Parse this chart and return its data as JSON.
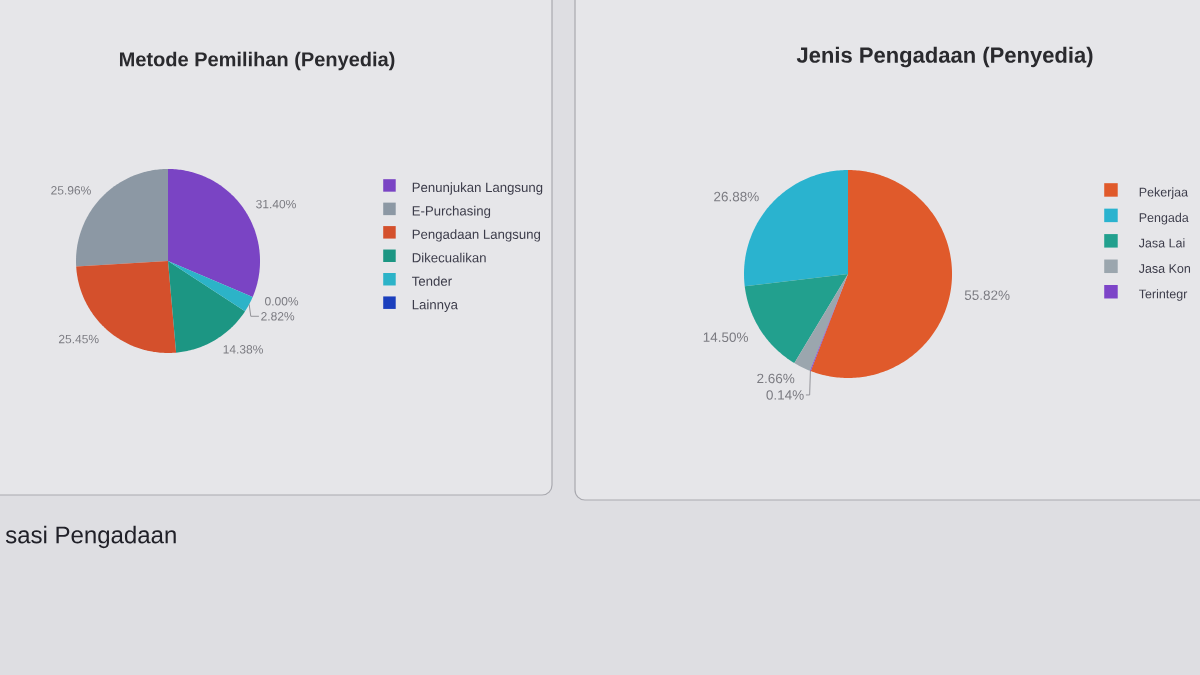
{
  "chart_data": [
    {
      "type": "pie",
      "title": "Metode Pemilihan (Penyedia)",
      "categories": [
        "Penunjukan Langsung",
        "E-Purchasing",
        "Pengadaan Langsung",
        "Dikecualikan",
        "Tender",
        "Lainnya"
      ],
      "values": [
        31.4,
        25.96,
        25.45,
        14.38,
        2.82,
        0.0
      ],
      "colors": [
        "#7a44c4",
        "#8c98a4",
        "#d4502c",
        "#1c9683",
        "#2cb3c8",
        "#1b3fbd"
      ],
      "value_labels": [
        "31.40%",
        "25.96%",
        "25.45%",
        "14.38%",
        "2.82%",
        "0.00%"
      ],
      "legend": "right",
      "annotations": [
        "sasi Pengadaan"
      ]
    },
    {
      "type": "pie",
      "title": "Jenis Pengadaan (Penyedia)",
      "categories": [
        "Pekerjaa",
        "Pengada",
        "Jasa Lai",
        "Jasa Kon",
        "Terintegr"
      ],
      "values": [
        55.82,
        26.88,
        14.5,
        2.66,
        0.14
      ],
      "colors": [
        "#e05a2b",
        "#2ab3cf",
        "#22a08e",
        "#9ba6ae",
        "#7d44c8"
      ],
      "value_labels": [
        "55.82%",
        "26.88%",
        "14.50%",
        "2.66%",
        "0.14%"
      ],
      "legend": "right"
    }
  ]
}
